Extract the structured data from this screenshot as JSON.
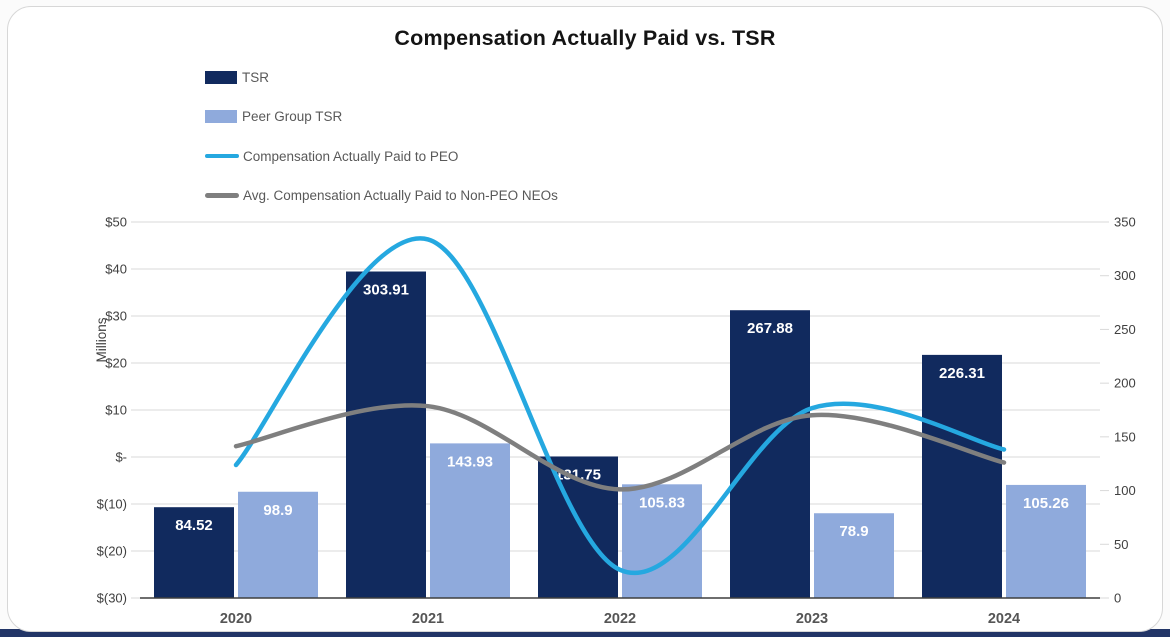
{
  "chart_data": {
    "type": "combo-bar-line",
    "title": "Compensation Actually Paid vs. TSR",
    "categories": [
      "2020",
      "2021",
      "2022",
      "2023",
      "2024"
    ],
    "series": [
      {
        "name": "TSR",
        "kind": "bar",
        "axis": "right",
        "color": "#112a5e",
        "values": [
          84.52,
          303.91,
          131.75,
          267.88,
          226.31
        ]
      },
      {
        "name": "Peer Group TSR",
        "kind": "bar",
        "axis": "right",
        "color": "#8faadc",
        "values": [
          98.9,
          143.93,
          105.83,
          78.9,
          105.26
        ]
      },
      {
        "name": "Compensation Actually Paid to PEO",
        "kind": "line",
        "axis": "left",
        "color": "#25a8e0",
        "values": [
          -1.7,
          46.3,
          -24,
          10.4,
          1.6
        ]
      },
      {
        "name": "Avg. Compensation Actually Paid to Non-PEO NEOs",
        "kind": "line",
        "axis": "left",
        "color": "#7f7f7f",
        "values": [
          2.3,
          10.8,
          -6.9,
          8.9,
          -1.2
        ]
      }
    ],
    "left_axis": {
      "title": "Millions",
      "min": -30,
      "max": 50,
      "ticks": [
        "$50",
        "$40",
        "$30",
        "$20",
        "$10",
        "$-",
        "$(10)",
        "$(20)",
        "$(30)"
      ]
    },
    "right_axis": {
      "min": 0,
      "max": 350,
      "ticks": [
        "350",
        "300",
        "250",
        "200",
        "150",
        "100",
        "50",
        "0"
      ]
    },
    "legend_position": "top-left",
    "grid": true,
    "bar_value_labels": true,
    "colors": {
      "gridline": "#d9d9d9",
      "axis_line": "#3f3f3f",
      "tick_text": "#404040",
      "category_text": "#555555",
      "bar_label_text": "#ffffff",
      "bottom_bar": "#223567"
    }
  }
}
